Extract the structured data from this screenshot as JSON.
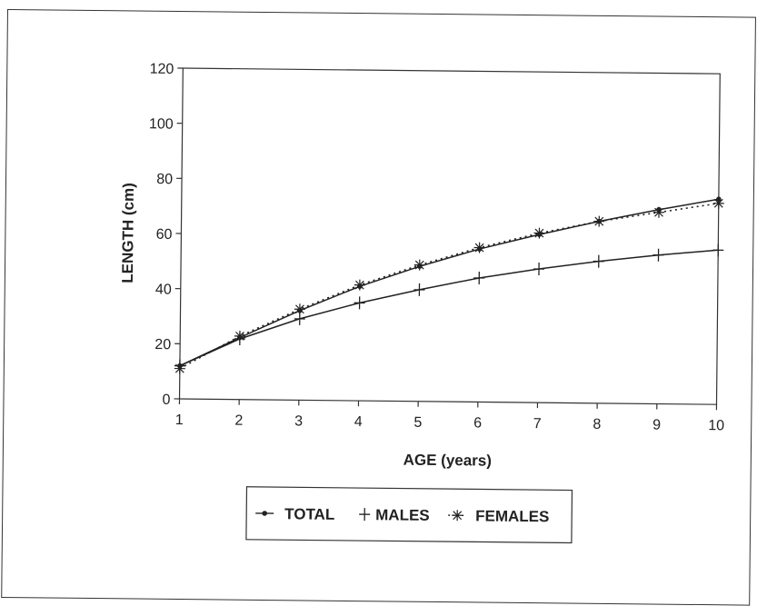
{
  "chart_data": {
    "type": "line",
    "title": "",
    "xlabel": "AGE (years)",
    "ylabel": "LENGTH (cm)",
    "xlim": [
      1,
      10
    ],
    "ylim": [
      0,
      120
    ],
    "x_ticks": [
      "1",
      "2",
      "3",
      "4",
      "5",
      "6",
      "7",
      "8",
      "9",
      "10"
    ],
    "y_ticks": [
      "0",
      "20",
      "40",
      "60",
      "80",
      "100",
      "120"
    ],
    "grid": false,
    "legend_position": "bottom",
    "x": [
      1,
      2,
      3,
      4,
      5,
      6,
      7,
      8,
      9,
      10
    ],
    "series": [
      {
        "name": "TOTAL",
        "marker": "dot",
        "line": "solid",
        "values": [
          12,
          22.5,
          32.5,
          41.5,
          49,
          55.5,
          61,
          66,
          70.5,
          74.5
        ]
      },
      {
        "name": "MALES",
        "marker": "plus",
        "line": "solid",
        "values": [
          12,
          22,
          29.5,
          35.5,
          40.5,
          45,
          48.5,
          51.5,
          54,
          56
        ]
      },
      {
        "name": "FEMALES",
        "marker": "asterisk",
        "line": "dotted",
        "values": [
          11,
          23,
          33,
          42,
          49.5,
          56,
          61.5,
          66,
          69.5,
          73
        ]
      }
    ]
  }
}
